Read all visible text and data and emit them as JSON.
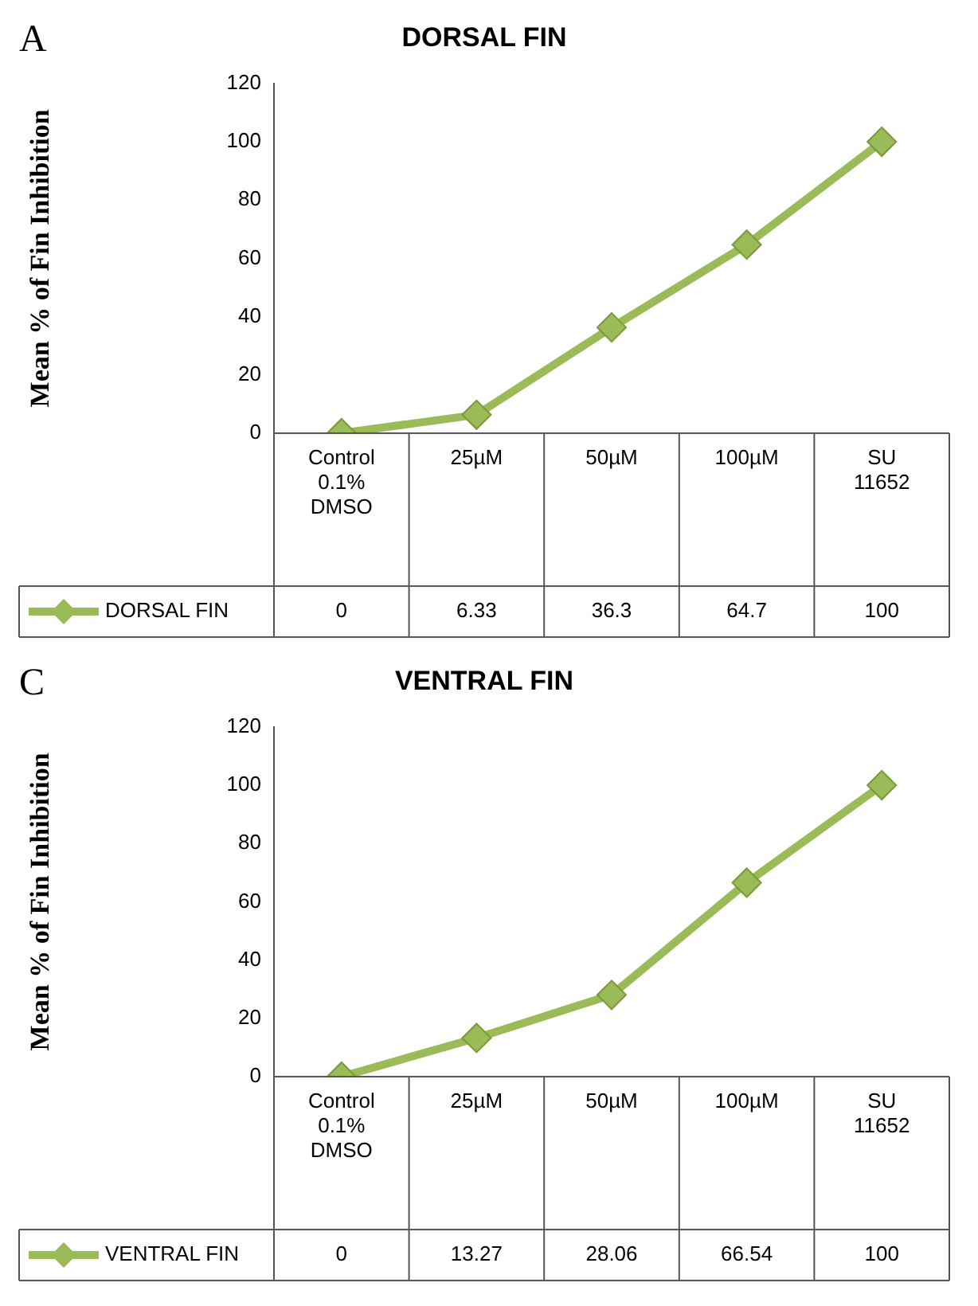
{
  "chart_data": [
    {
      "type": "line",
      "title": "DORSAL FIN",
      "ylabel": "Mean % of Fin Inhibition",
      "annotations": [
        "A"
      ],
      "categories": [
        "Control 0.1% DMSO",
        "25µM",
        "50µM",
        "100µM",
        "SU 11652"
      ],
      "series": [
        {
          "name": "DORSAL FIN",
          "color": "#9bbb59",
          "values": [
            0,
            6.33,
            36.3,
            64.7,
            100
          ]
        }
      ],
      "ylim": [
        0,
        120
      ],
      "yticks": [
        0,
        20,
        40,
        60,
        80,
        100,
        120
      ],
      "grid": false,
      "legend": "bottom",
      "data_labels": true,
      "marker": "diamond"
    },
    {
      "type": "line",
      "title": "VENTRAL FIN",
      "ylabel": "Mean % of Fin Inhibition",
      "annotations": [
        "C"
      ],
      "categories": [
        "Control 0.1% DMSO",
        "25µM",
        "50µM",
        "100µM",
        "SU 11652"
      ],
      "series": [
        {
          "name": "VENTRAL FIN",
          "color": "#9bbb59",
          "values": [
            0,
            13.27,
            28.06,
            66.54,
            100
          ]
        }
      ],
      "ylim": [
        0,
        120
      ],
      "yticks": [
        0,
        20,
        40,
        60,
        80,
        100,
        120
      ],
      "grid": false,
      "legend": "bottom",
      "data_labels": true,
      "marker": "diamond"
    }
  ]
}
